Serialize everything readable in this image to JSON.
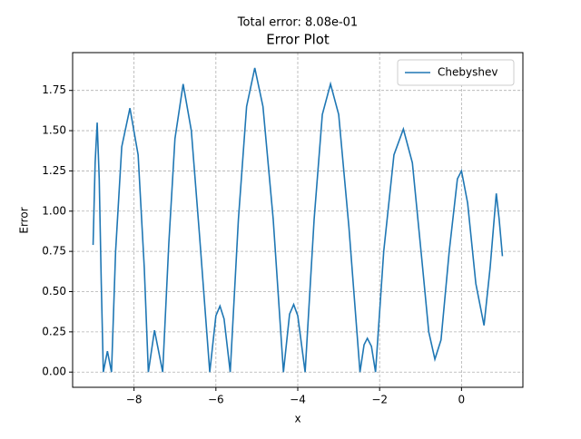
{
  "chart_data": {
    "type": "line",
    "suptitle": "Total error: 8.08e-01",
    "title": "Error Plot",
    "xlabel": "x",
    "ylabel": "Error",
    "x": [
      -9.0,
      -8.95,
      -8.9,
      -8.85,
      -8.8,
      -8.75,
      -8.65,
      -8.55,
      -8.45,
      -8.3,
      -8.1,
      -7.9,
      -7.75,
      -7.65,
      -7.5,
      -7.3,
      -7.15,
      -7.0,
      -6.8,
      -6.6,
      -6.4,
      -6.15,
      -6.0,
      -5.9,
      -5.8,
      -5.65,
      -5.45,
      -5.25,
      -5.05,
      -4.85,
      -4.6,
      -4.35,
      -4.2,
      -4.1,
      -4.0,
      -3.82,
      -3.6,
      -3.4,
      -3.2,
      -3.0,
      -2.75,
      -2.48,
      -2.38,
      -2.3,
      -2.2,
      -2.1,
      -1.9,
      -1.65,
      -1.42,
      -1.2,
      -0.95,
      -0.8,
      -0.65,
      -0.5,
      -0.3,
      -0.1,
      0.0,
      0.15,
      0.35,
      0.55,
      0.7,
      0.85,
      0.92,
      1.0
    ],
    "series": [
      {
        "name": "Chebyshev",
        "color": "#1f77b4",
        "values": [
          0.79,
          1.3,
          1.55,
          1.2,
          0.55,
          0,
          0.13,
          0,
          0.75,
          1.4,
          1.64,
          1.35,
          0.65,
          0,
          0.26,
          0,
          0.8,
          1.45,
          1.79,
          1.5,
          0.85,
          0,
          0.35,
          0.41,
          0.33,
          0,
          0.95,
          1.65,
          1.89,
          1.65,
          0.95,
          0,
          0.36,
          0.42,
          0.35,
          0,
          0.95,
          1.6,
          1.79,
          1.6,
          0.9,
          0,
          0.17,
          0.21,
          0.16,
          0,
          0.75,
          1.35,
          1.51,
          1.3,
          0.65,
          0.25,
          0.08,
          0.2,
          0.75,
          1.2,
          1.25,
          1.05,
          0.55,
          0.29,
          0.65,
          1.11,
          0.95,
          0.72
        ]
      }
    ],
    "xlim": [
      -9.5,
      1.5
    ],
    "ylim": [
      -0.0945,
      1.985
    ],
    "xticks": [
      {
        "value": -8,
        "label": "−8"
      },
      {
        "value": -6,
        "label": "−6"
      },
      {
        "value": -4,
        "label": "−4"
      },
      {
        "value": -2,
        "label": "−2"
      },
      0
    ],
    "yticks": [
      {
        "value": 0,
        "label": "0.00"
      },
      {
        "value": 0.25,
        "label": "0.25"
      },
      {
        "value": 0.5,
        "label": "0.50"
      },
      {
        "value": 0.75,
        "label": "0.75"
      },
      {
        "value": 1,
        "label": "1.00"
      },
      {
        "value": 1.25,
        "label": "1.25"
      },
      {
        "value": 1.5,
        "label": "1.50"
      },
      {
        "value": 1.75,
        "label": "1.75"
      }
    ],
    "grid": true,
    "legend": "upper right"
  }
}
